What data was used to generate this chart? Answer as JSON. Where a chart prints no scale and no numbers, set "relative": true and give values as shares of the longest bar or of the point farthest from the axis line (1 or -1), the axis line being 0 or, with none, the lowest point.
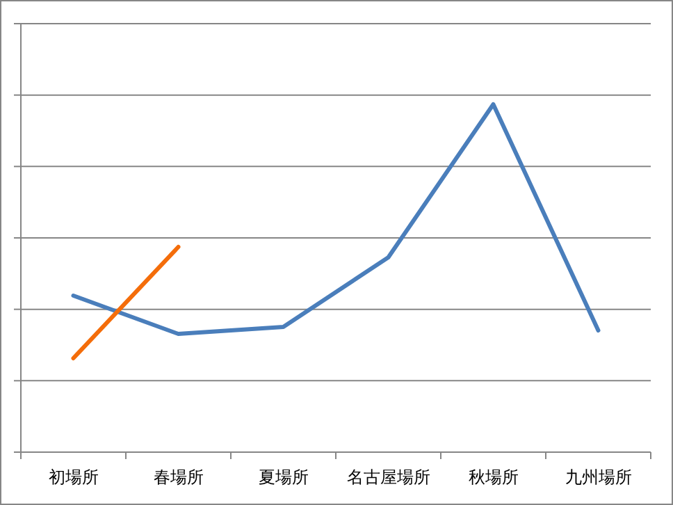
{
  "chart_data": {
    "type": "line",
    "relative": true,
    "grid": "y",
    "marker": "none",
    "line_style": "solid",
    "categories": [
      "初場所",
      "春場所",
      "夏場所",
      "名古屋場所",
      "秋場所",
      "九州場所"
    ],
    "series": [
      {
        "color": "#4a7ebb",
        "values": [
          0.45,
          0.34,
          0.36,
          0.56,
          1,
          0.35
        ]
      },
      {
        "color": "#f46d0a",
        "values": [
          0.27,
          0.59,
          null,
          null,
          null,
          null
        ]
      }
    ]
  }
}
